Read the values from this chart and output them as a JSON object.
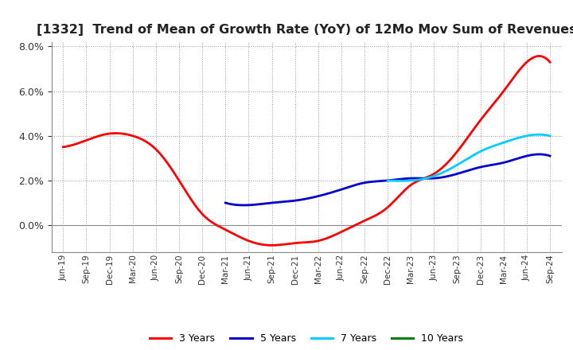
{
  "title": "[1332]  Trend of Mean of Growth Rate (YoY) of 12Mo Mov Sum of Revenues",
  "title_fontsize": 11.5,
  "background_color": "#ffffff",
  "grid_color": "#999999",
  "ylim": [
    -0.012,
    0.082
  ],
  "yticks": [
    0.0,
    0.02,
    0.04,
    0.06,
    0.08
  ],
  "x_labels": [
    "Jun-19",
    "Sep-19",
    "Dec-19",
    "Mar-20",
    "Jun-20",
    "Sep-20",
    "Dec-20",
    "Mar-21",
    "Jun-21",
    "Sep-21",
    "Dec-21",
    "Mar-22",
    "Jun-22",
    "Sep-22",
    "Dec-22",
    "Mar-23",
    "Jun-23",
    "Sep-23",
    "Dec-23",
    "Mar-24",
    "Jun-24",
    "Sep-24"
  ],
  "series": {
    "3 Years": {
      "color": "#ff0000",
      "linewidth": 2.0,
      "data_x": [
        0,
        1,
        2,
        3,
        4,
        5,
        6,
        7,
        8,
        9,
        10,
        11,
        12,
        13,
        14,
        15,
        16,
        17,
        18,
        19,
        20,
        21
      ],
      "data_y": [
        0.035,
        0.038,
        0.041,
        0.04,
        0.034,
        0.02,
        0.005,
        -0.002,
        -0.007,
        -0.009,
        -0.008,
        -0.007,
        -0.003,
        0.002,
        0.008,
        0.018,
        0.023,
        0.033,
        0.047,
        0.06,
        0.073,
        0.073
      ]
    },
    "5 Years": {
      "color": "#0000cc",
      "linewidth": 2.0,
      "data_x": [
        7,
        8,
        9,
        10,
        11,
        12,
        13,
        14,
        15,
        16,
        17,
        18,
        19,
        20,
        21
      ],
      "data_y": [
        0.01,
        0.009,
        0.01,
        0.011,
        0.013,
        0.016,
        0.019,
        0.02,
        0.021,
        0.021,
        0.023,
        0.026,
        0.028,
        0.031,
        0.031
      ]
    },
    "7 Years": {
      "color": "#00ccff",
      "linewidth": 2.0,
      "data_x": [
        14,
        15,
        16,
        17,
        18,
        19,
        20,
        21
      ],
      "data_y": [
        0.02,
        0.02,
        0.022,
        0.027,
        0.033,
        0.037,
        0.04,
        0.04
      ]
    },
    "10 Years": {
      "color": "#008000",
      "linewidth": 2.0,
      "data_x": [
        21
      ],
      "data_y": [
        0.031
      ]
    }
  },
  "legend_labels": [
    "3 Years",
    "5 Years",
    "7 Years",
    "10 Years"
  ]
}
